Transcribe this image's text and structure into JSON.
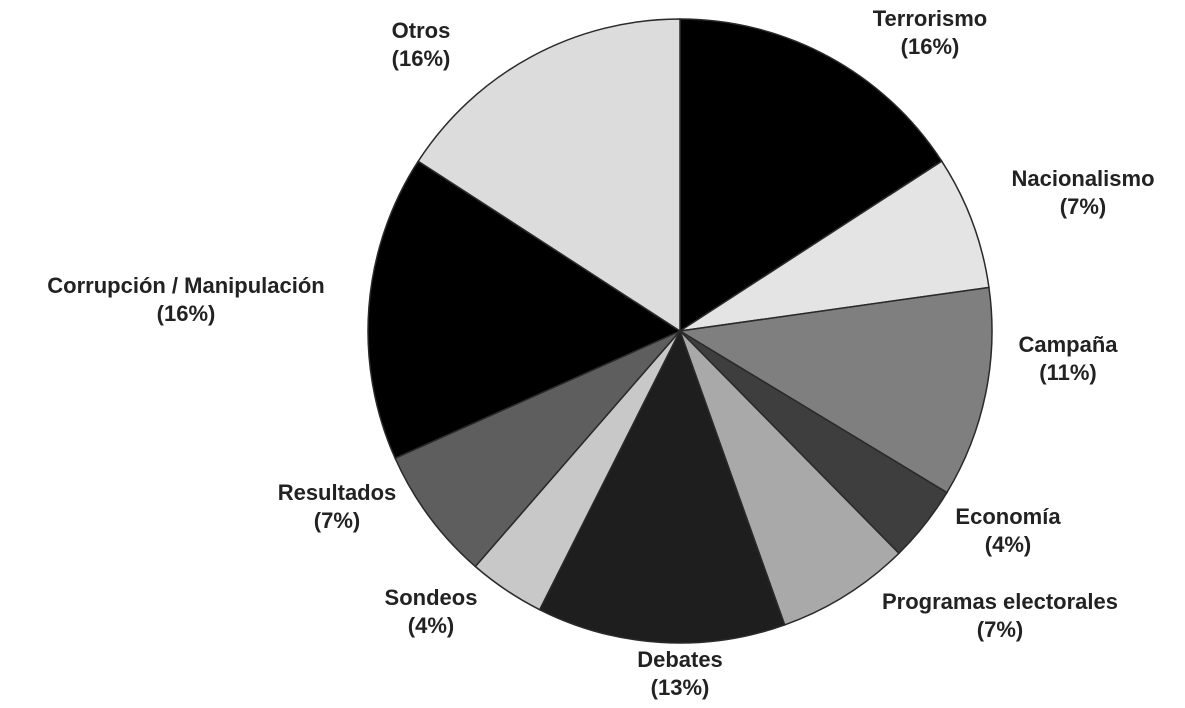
{
  "chart_data": {
    "type": "pie",
    "title": "",
    "start_angle_deg": 0,
    "direction": "clockwise",
    "slices": [
      {
        "label": "Terrorismo",
        "value_label": "(16%)",
        "value": 16,
        "color": "#000000"
      },
      {
        "label": "Nacionalismo",
        "value_label": "(7%)",
        "value": 7,
        "color": "#e4e4e4"
      },
      {
        "label": "Campaña",
        "value_label": "(11%)",
        "value": 11,
        "color": "#7f7f7f"
      },
      {
        "label": "Economía",
        "value_label": "(4%)",
        "value": 4,
        "color": "#3e3e3e"
      },
      {
        "label": "Programas electorales",
        "value_label": "(7%)",
        "value": 7,
        "color": "#a9a9a9"
      },
      {
        "label": "Debates",
        "value_label": "(13%)",
        "value": 13,
        "color": "#1e1e1e"
      },
      {
        "label": "Sondeos",
        "value_label": "(4%)",
        "value": 4,
        "color": "#c8c8c8"
      },
      {
        "label": "Resultados",
        "value_label": "(7%)",
        "value": 7,
        "color": "#5e5e5e"
      },
      {
        "label": "Corrupción / Manipulación",
        "value_label": "(16%)",
        "value": 16,
        "color": "#000000"
      },
      {
        "label": "Otros",
        "value_label": "(16%)",
        "value": 16,
        "color": "#dcdcdc"
      }
    ]
  }
}
